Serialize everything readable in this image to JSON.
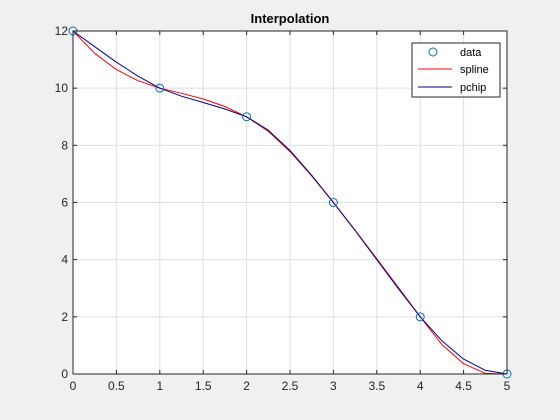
{
  "chart_data": {
    "type": "line",
    "title": "Interpolation",
    "xlabel": "",
    "ylabel": "",
    "xlim": [
      0,
      5
    ],
    "ylim": [
      0,
      12
    ],
    "xticks": [
      0,
      0.5,
      1,
      1.5,
      2,
      2.5,
      3,
      3.5,
      4,
      4.5,
      5
    ],
    "yticks": [
      0,
      2,
      4,
      6,
      8,
      10,
      12
    ],
    "grid": true,
    "legend_position": "top-right",
    "data_points": {
      "name": "data",
      "marker": "circle",
      "color": "#0072bd",
      "x": [
        0,
        1,
        2,
        3,
        4,
        5
      ],
      "y": [
        12,
        10,
        9,
        6,
        2,
        0
      ]
    },
    "series": [
      {
        "name": "spline",
        "color": "#ff0000",
        "x": [
          0,
          0.25,
          0.5,
          0.75,
          1,
          1.25,
          1.5,
          1.75,
          2,
          2.25,
          2.5,
          2.75,
          3,
          3.25,
          3.5,
          3.75,
          4,
          4.25,
          4.5,
          4.75,
          5
        ],
        "y": [
          12,
          11.22,
          10.65,
          10.26,
          10,
          9.82,
          9.62,
          9.36,
          9,
          8.49,
          7.78,
          6.93,
          6,
          5.03,
          4.03,
          3.02,
          2,
          1.03,
          0.36,
          0.02,
          0
        ]
      },
      {
        "name": "pchip",
        "color": "#00008b",
        "x": [
          0,
          0.25,
          0.5,
          0.75,
          1,
          1.25,
          1.5,
          1.75,
          2,
          2.25,
          2.5,
          2.75,
          3,
          3.25,
          3.5,
          3.75,
          4,
          4.25,
          4.5,
          4.75,
          5
        ],
        "y": [
          12,
          11.45,
          10.91,
          10.42,
          10,
          9.72,
          9.5,
          9.27,
          9,
          8.53,
          7.82,
          6.95,
          6,
          5.02,
          4,
          2.98,
          2,
          1.16,
          0.52,
          0.13,
          0
        ]
      }
    ]
  },
  "colors": {
    "figure_background": "#f0f0f0",
    "axes_background": "#ffffff",
    "axis_color": "#262626",
    "grid_color": "#dfdfdf"
  }
}
